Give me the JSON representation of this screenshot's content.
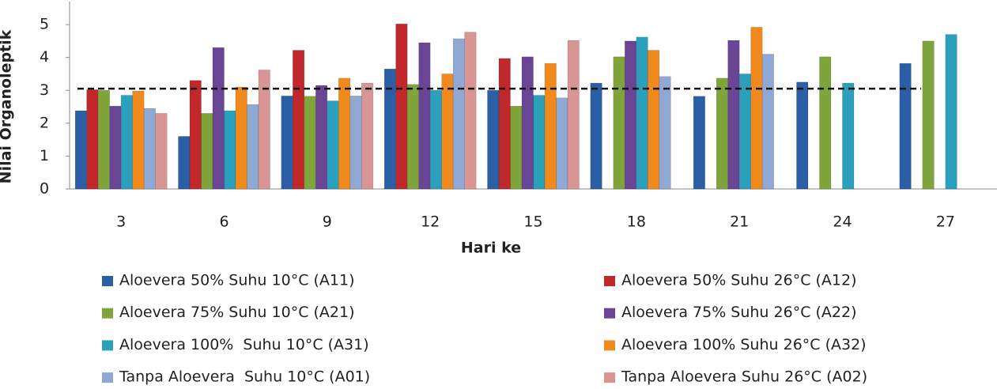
{
  "chart_data": {
    "type": "bar",
    "y_label": "Nilai Organoleptik",
    "x_label": "Hari ke",
    "categories": [
      "3",
      "6",
      "9",
      "12",
      "15",
      "18",
      "21",
      "24",
      "27"
    ],
    "series": [
      {
        "name": "Aloevera 50% Suhu 10°C (A11)",
        "color": "#2a5fa5",
        "values": [
          2.38,
          1.6,
          2.83,
          3.65,
          3.0,
          3.22,
          2.82,
          3.25,
          3.82
        ]
      },
      {
        "name": "Aloevera 50% Suhu 26°C (A12)",
        "color": "#c0282c",
        "values": [
          3.02,
          3.3,
          4.22,
          5.02,
          3.97,
          null,
          null,
          null,
          null
        ]
      },
      {
        "name": "Aloevera 75% Suhu 10°C (A21)",
        "color": "#7fa53a",
        "values": [
          3.0,
          2.3,
          2.82,
          3.18,
          2.52,
          4.02,
          3.37,
          4.02,
          4.5
        ]
      },
      {
        "name": "Aloevera 75% Suhu 26°C (A22)",
        "color": "#6a4595",
        "values": [
          2.52,
          4.3,
          3.15,
          4.45,
          4.02,
          4.5,
          4.52,
          null,
          null
        ]
      },
      {
        "name": "Aloevera 100%  Suhu 10°C (A31)",
        "color": "#2aa0bd",
        "values": [
          2.85,
          2.38,
          2.68,
          3.0,
          2.85,
          4.62,
          3.5,
          3.22,
          4.7
        ]
      },
      {
        "name": "Aloevera 100% Suhu 26°C (A32)",
        "color": "#f08a1c",
        "values": [
          2.98,
          3.1,
          3.37,
          3.5,
          3.82,
          4.22,
          4.92,
          null,
          null
        ]
      },
      {
        "name": "Tanpa Aloevera  Suhu 10°C (A01)",
        "color": "#8fa8d4",
        "values": [
          2.45,
          2.57,
          2.83,
          4.57,
          2.77,
          3.42,
          4.1,
          null,
          null
        ]
      },
      {
        "name": "Tanpa Aloevera Suhu 26°C (A02)",
        "color": "#d99594",
        "values": [
          2.3,
          3.62,
          3.22,
          4.77,
          4.52,
          null,
          null,
          null,
          null
        ]
      }
    ],
    "reference_line": 3.05,
    "ylim": [
      0,
      5.7
    ],
    "yticks": [
      0,
      1,
      2,
      3,
      4,
      5
    ],
    "grid": false
  }
}
